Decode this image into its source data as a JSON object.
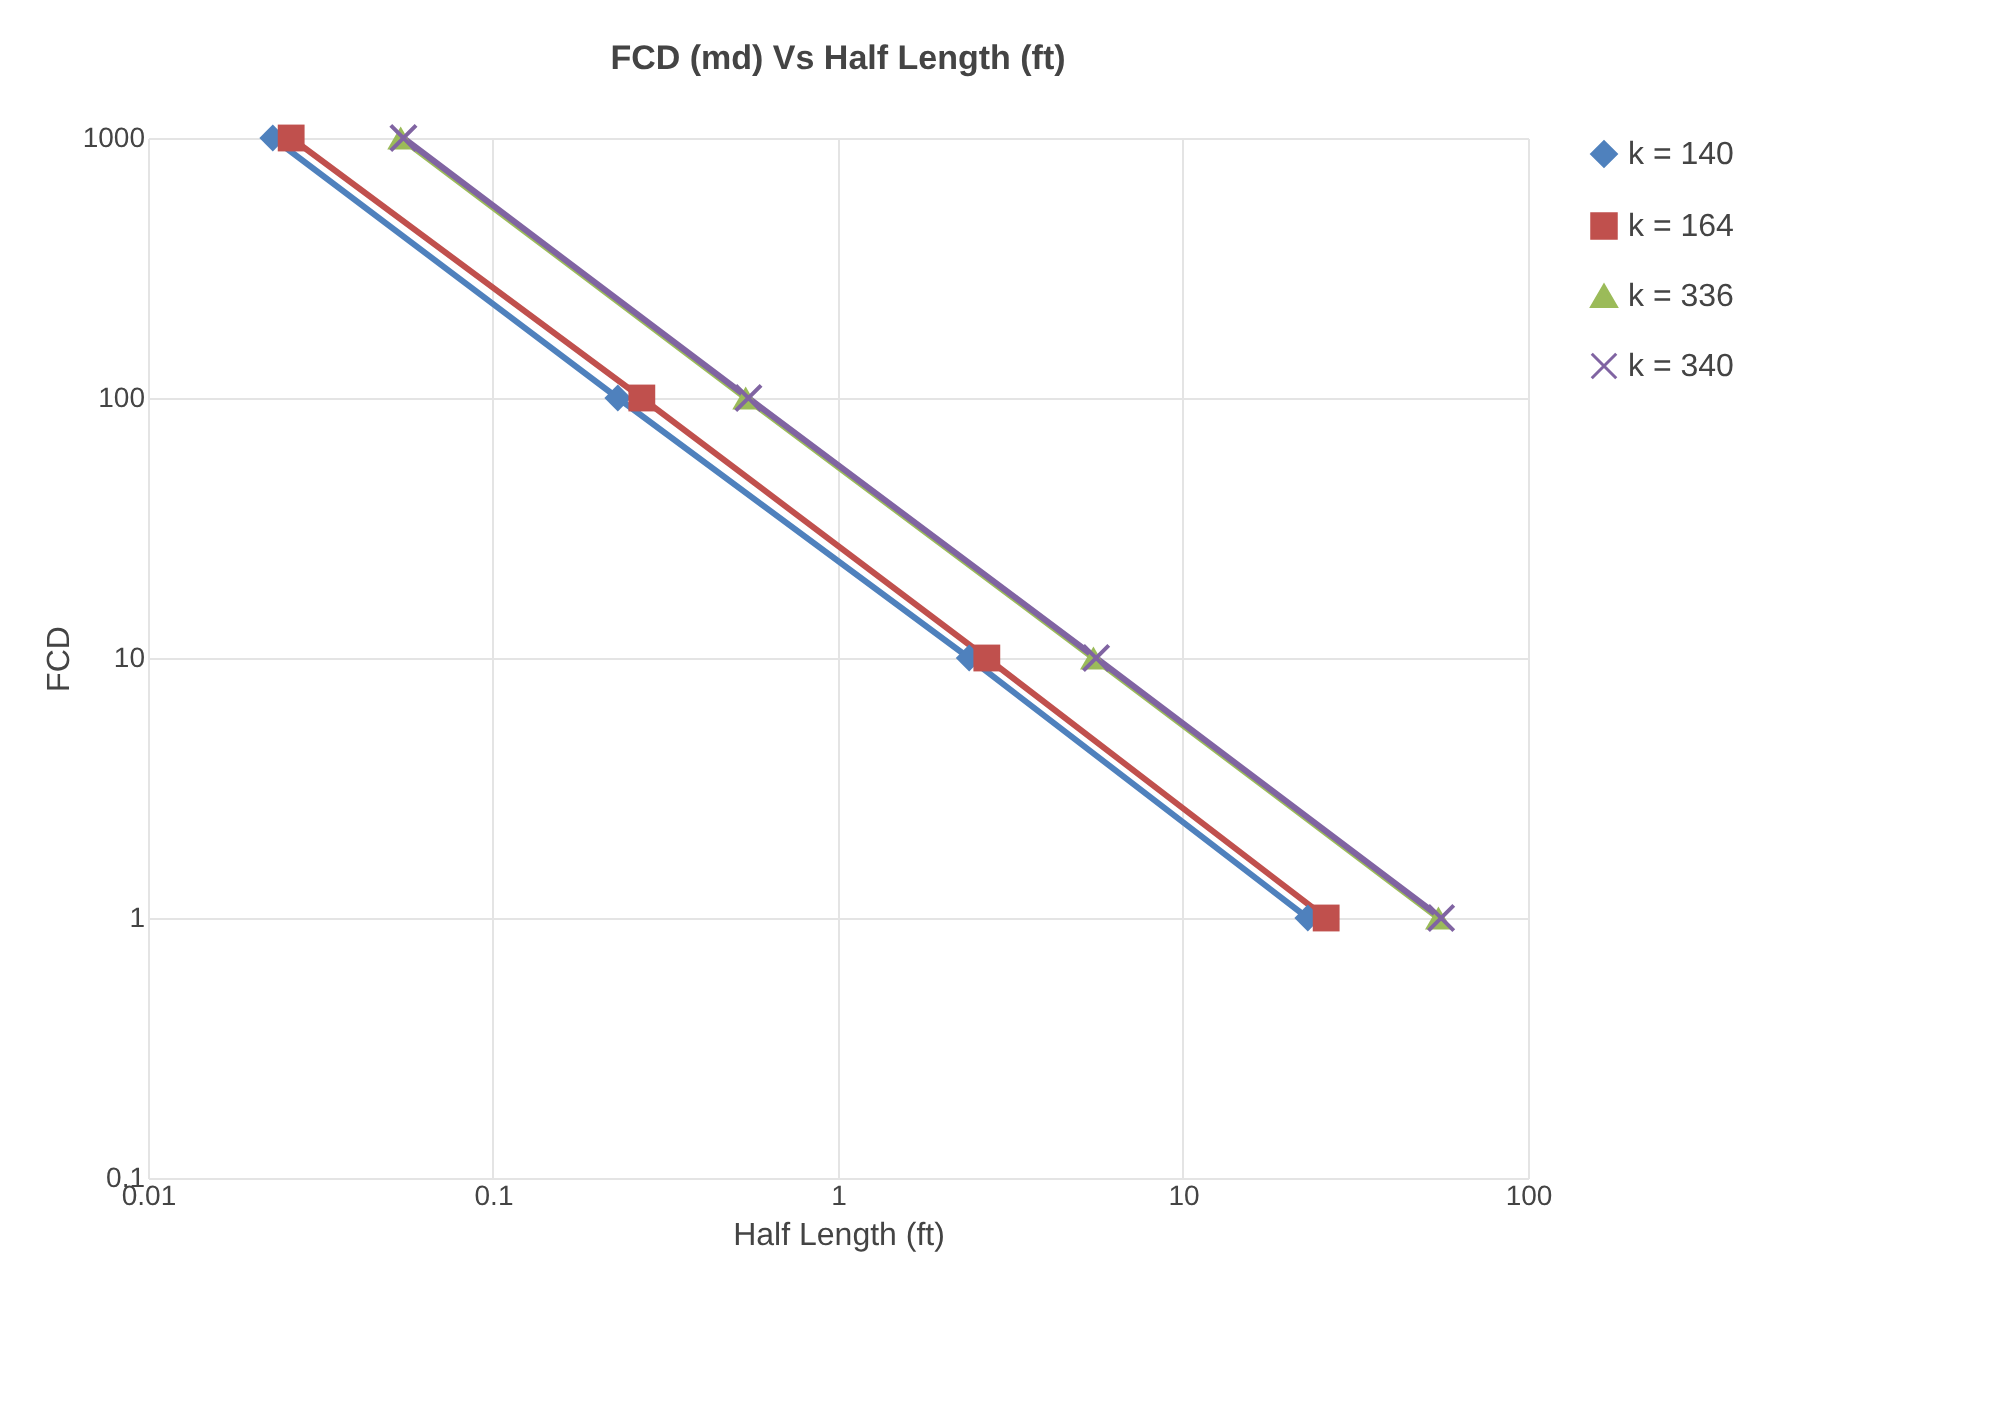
{
  "chart_data": {
    "type": "line",
    "title": "FCD  (md) Vs Half Length (ft)",
    "xlabel": "Half Length (ft)",
    "ylabel": "FCD",
    "log": "xy",
    "xlim": [
      0.01,
      100
    ],
    "xticks": [
      0.01,
      0.1,
      1,
      10,
      100
    ],
    "ylim": [
      0.1,
      1000
    ],
    "yticks": [
      0.1,
      1,
      10,
      100,
      1000
    ],
    "grid": true,
    "legend": "right",
    "line_style": "solid",
    "series": [
      {
        "name": "k = 140",
        "color": "#4f81bd",
        "marker": "diamond",
        "x": [
          0.023,
          0.23,
          2.4,
          23
        ],
        "values": [
          1000,
          100,
          10,
          1
        ]
      },
      {
        "name": "k = 164",
        "color": "#c0504d",
        "marker": "square",
        "x": [
          0.026,
          0.27,
          2.7,
          26
        ],
        "values": [
          1000,
          100,
          10,
          1
        ]
      },
      {
        "name": "k = 336",
        "color": "#9bbb59",
        "marker": "triangle",
        "x": [
          0.054,
          0.54,
          5.5,
          55
        ],
        "values": [
          1000,
          100,
          10,
          1
        ]
      },
      {
        "name": "k = 340",
        "color": "#8064a2",
        "marker": "cross",
        "x": [
          0.055,
          0.55,
          5.6,
          56
        ],
        "values": [
          1000,
          100,
          10,
          1
        ]
      }
    ]
  }
}
